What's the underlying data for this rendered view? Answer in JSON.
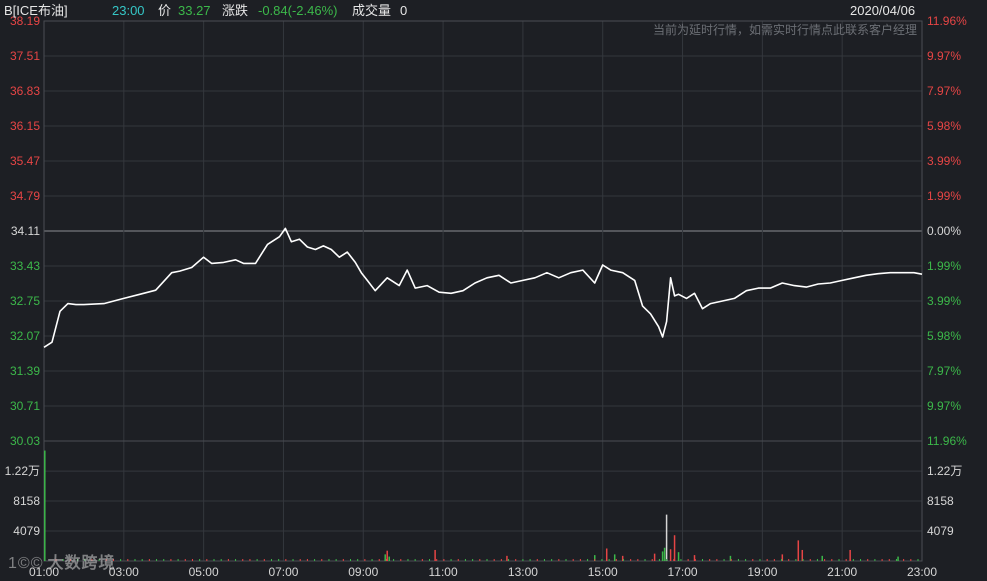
{
  "header": {
    "symbol": "B[ICE布油]",
    "time": "23:00",
    "price_label": "价",
    "price": "33.27",
    "change_label": "涨跌",
    "change": "-0.84(-2.46%)",
    "volume_label": "成交量",
    "volume": "0",
    "date": "2020/04/06"
  },
  "notice": "当前为延时行情，如需实时行情点此联系客户经理",
  "watermark": {
    "logo": "1©©",
    "text": "大数跨境"
  },
  "colors": {
    "up": "#e64545",
    "down": "#3cb84a",
    "line": "#ffffff",
    "neutral": "#d6d6d6",
    "background": "#1d1f24",
    "grid": "#34373d"
  },
  "chart_data": {
    "type": "line",
    "title": "",
    "xlabel": "",
    "ylabel": "",
    "reference_price": 34.11,
    "ylim": [
      30.03,
      38.19
    ],
    "y_ticks": [
      38.19,
      37.51,
      36.83,
      36.15,
      35.47,
      34.79,
      34.11,
      33.43,
      32.75,
      32.07,
      31.39,
      30.71,
      30.03
    ],
    "y_tick_labels": [
      "38.19",
      "37.51",
      "36.83",
      "36.15",
      "35.47",
      "34.79",
      "34.11",
      "33.43",
      "32.75",
      "32.07",
      "31.39",
      "30.71",
      "30.03"
    ],
    "pct_tick_labels": [
      "11.96%",
      "9.97%",
      "7.97%",
      "5.98%",
      "3.99%",
      "1.99%",
      "0.00%",
      "1.99%",
      "3.99%",
      "5.98%",
      "7.97%",
      "9.97%",
      "11.96%"
    ],
    "x_tick_labels": [
      "01:00",
      "03:00",
      "05:00",
      "07:00",
      "09:00",
      "11:00",
      "13:00",
      "15:00",
      "17:00",
      "19:00",
      "21:00",
      "23:00"
    ],
    "x_hours": [
      1,
      3,
      5,
      7,
      9,
      11,
      13,
      15,
      17,
      19,
      21,
      23
    ],
    "price_series": {
      "x": [
        1.0,
        1.2,
        1.4,
        1.6,
        1.8,
        2.0,
        2.5,
        3.0,
        3.4,
        3.8,
        4.2,
        4.4,
        4.7,
        5.0,
        5.2,
        5.5,
        5.8,
        6.0,
        6.3,
        6.6,
        6.9,
        7.05,
        7.2,
        7.4,
        7.6,
        7.8,
        8.0,
        8.2,
        8.4,
        8.6,
        8.8,
        8.95,
        9.1,
        9.3,
        9.6,
        9.9,
        10.1,
        10.3,
        10.6,
        10.9,
        11.2,
        11.5,
        11.8,
        12.1,
        12.4,
        12.7,
        13.0,
        13.3,
        13.6,
        13.9,
        14.2,
        14.5,
        14.8,
        15.0,
        15.2,
        15.5,
        15.8,
        16.0,
        16.2,
        16.4,
        16.5,
        16.6,
        16.7,
        16.8,
        16.9,
        17.1,
        17.3,
        17.5,
        17.7,
        18.0,
        18.3,
        18.6,
        18.9,
        19.2,
        19.5,
        19.8,
        20.1,
        20.4,
        20.7,
        21.0,
        21.3,
        21.6,
        21.9,
        22.2,
        22.5,
        22.8,
        23.0
      ],
      "y": [
        31.85,
        31.95,
        32.55,
        32.7,
        32.68,
        32.68,
        32.7,
        32.8,
        32.88,
        32.96,
        33.3,
        33.33,
        33.4,
        33.6,
        33.48,
        33.5,
        33.55,
        33.48,
        33.48,
        33.85,
        34.0,
        34.16,
        33.9,
        33.95,
        33.8,
        33.75,
        33.82,
        33.75,
        33.6,
        33.7,
        33.5,
        33.3,
        33.15,
        32.95,
        33.2,
        33.05,
        33.35,
        33.0,
        33.05,
        32.92,
        32.9,
        32.95,
        33.1,
        33.2,
        33.25,
        33.1,
        33.15,
        33.2,
        33.3,
        33.2,
        33.3,
        33.35,
        33.1,
        33.45,
        33.35,
        33.3,
        33.15,
        32.65,
        32.5,
        32.25,
        32.05,
        32.35,
        33.2,
        32.85,
        32.88,
        32.8,
        32.9,
        32.6,
        32.7,
        32.75,
        32.8,
        32.95,
        33.0,
        33.0,
        33.1,
        33.05,
        33.02,
        33.08,
        33.1,
        33.15,
        33.2,
        33.25,
        33.28,
        33.3,
        33.3,
        33.3,
        33.27
      ]
    },
    "volume": {
      "y_tick_labels": [
        "1.22万",
        "8158",
        "4079"
      ],
      "y_ticks": [
        12200,
        8158,
        4079
      ],
      "ylim": [
        0,
        16300
      ],
      "bars": [
        {
          "x": 1.02,
          "v": 15000,
          "c": "down"
        },
        {
          "x": 9.55,
          "v": 900,
          "c": "down"
        },
        {
          "x": 9.6,
          "v": 1400,
          "c": "up"
        },
        {
          "x": 9.65,
          "v": 600,
          "c": "down"
        },
        {
          "x": 10.8,
          "v": 1500,
          "c": "up"
        },
        {
          "x": 12.6,
          "v": 700,
          "c": "up"
        },
        {
          "x": 14.8,
          "v": 800,
          "c": "down"
        },
        {
          "x": 15.1,
          "v": 1700,
          "c": "up"
        },
        {
          "x": 15.3,
          "v": 900,
          "c": "down"
        },
        {
          "x": 15.5,
          "v": 700,
          "c": "up"
        },
        {
          "x": 16.3,
          "v": 1000,
          "c": "up"
        },
        {
          "x": 16.5,
          "v": 1300,
          "c": "down"
        },
        {
          "x": 16.55,
          "v": 1800,
          "c": "down"
        },
        {
          "x": 16.6,
          "v": 6300,
          "c": "neutral"
        },
        {
          "x": 16.7,
          "v": 1600,
          "c": "up"
        },
        {
          "x": 16.8,
          "v": 3500,
          "c": "up"
        },
        {
          "x": 16.9,
          "v": 1200,
          "c": "down"
        },
        {
          "x": 17.3,
          "v": 800,
          "c": "up"
        },
        {
          "x": 18.2,
          "v": 700,
          "c": "down"
        },
        {
          "x": 19.5,
          "v": 900,
          "c": "up"
        },
        {
          "x": 19.9,
          "v": 2800,
          "c": "up"
        },
        {
          "x": 20.0,
          "v": 1500,
          "c": "up"
        },
        {
          "x": 20.5,
          "v": 700,
          "c": "down"
        },
        {
          "x": 21.2,
          "v": 1500,
          "c": "up"
        },
        {
          "x": 22.4,
          "v": 600,
          "c": "down"
        }
      ]
    }
  }
}
